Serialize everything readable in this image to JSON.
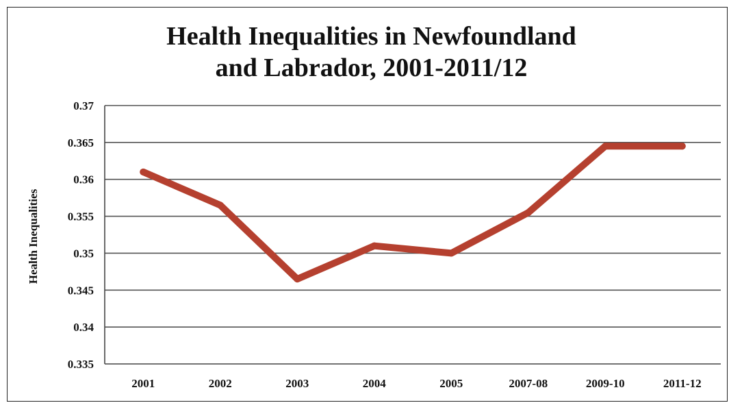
{
  "chart_data": {
    "type": "line",
    "title_lines": [
      "Health Inequalities in Newfoundland",
      "and Labrador, 2001-2011/12"
    ],
    "xlabel": "",
    "ylabel": "Health Inequalities",
    "categories": [
      "2001",
      "2002",
      "2003",
      "2004",
      "2005",
      "2007-08",
      "2009-10",
      "2011-12"
    ],
    "series": [
      {
        "values": [
          0.361,
          0.3565,
          0.3465,
          0.351,
          0.35,
          0.3555,
          0.3645,
          0.3645
        ]
      }
    ],
    "ylim": [
      0.335,
      0.37
    ],
    "yticks": [
      "0.335",
      "0.34",
      "0.345",
      "0.35",
      "0.355",
      "0.36",
      "0.365",
      "0.37"
    ],
    "grid": "horizontal",
    "legend": "none",
    "colors": {
      "line": "#b5402f",
      "grid": "#555555",
      "axis": "#444444"
    }
  }
}
